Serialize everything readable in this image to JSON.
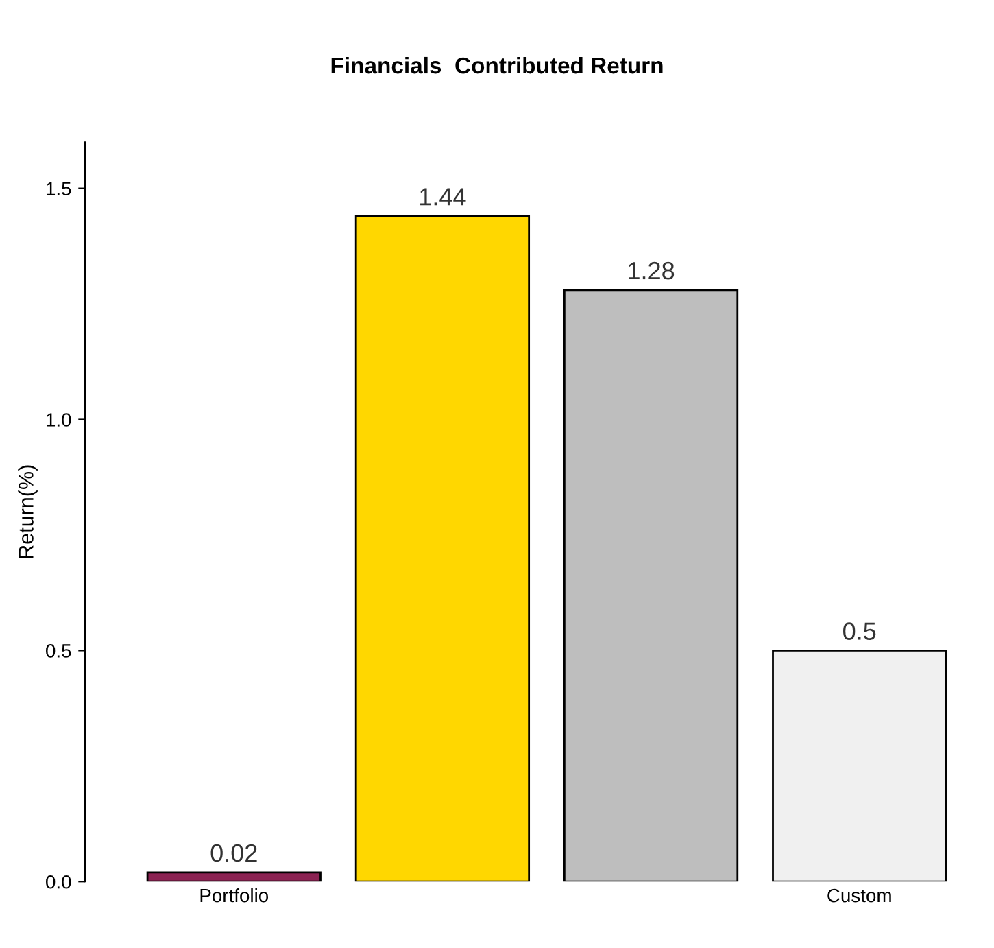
{
  "chart_data": {
    "type": "bar",
    "title": "Financials  Contributed Return",
    "ylabel": "Return(%)",
    "categories": [
      "Portfolio",
      null,
      null,
      "Custom"
    ],
    "values": [
      0.02,
      1.44,
      1.28,
      0.5
    ],
    "colors": [
      "#8b2252",
      "#ffd700",
      "#bebebe",
      "#f0f0f0"
    ],
    "ylim": [
      0,
      1.6
    ],
    "yticks": [
      {
        "value": 0,
        "label": "0.0"
      },
      {
        "value": 0.5,
        "label": "0.5"
      },
      {
        "value": 1.0,
        "label": "1.0"
      },
      {
        "value": 1.5,
        "label": "1.5"
      }
    ],
    "data_labels": true,
    "grid": false,
    "legend": false
  }
}
